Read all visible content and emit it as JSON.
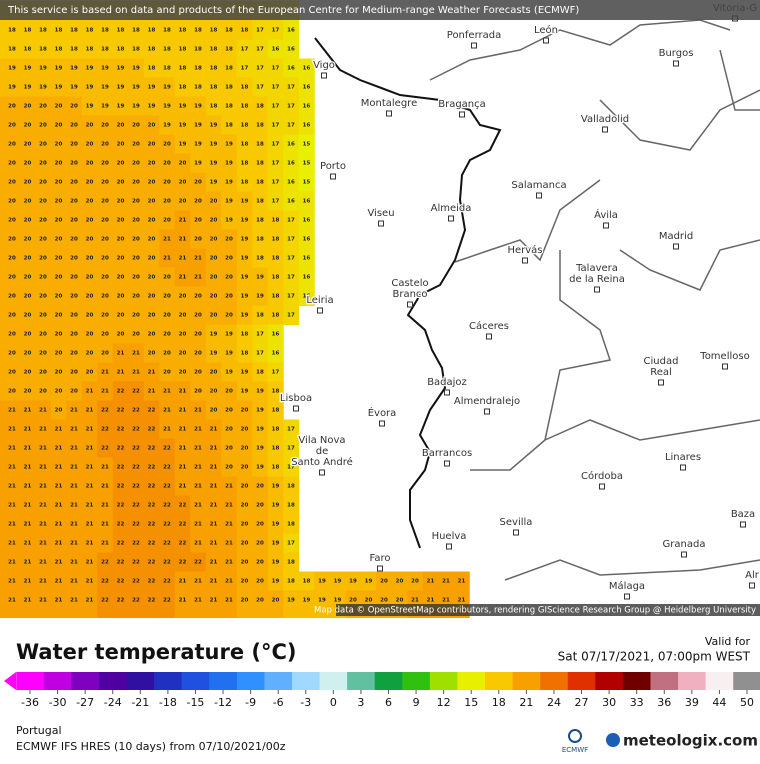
{
  "header": {
    "notice": "This service is based on data and products of the European Centre for Medium-range Weather Forecasts (ECMWF)"
  },
  "map": {
    "attribution": "Map data © OpenStreetMap contributors, rendering GIScience Research Group @ Heidelberg University",
    "cities": [
      [
        "Vitoria-G"
      ],
      [
        "León"
      ],
      [
        "Ponferrada"
      ],
      [
        "Burgos"
      ],
      [
        "Vigo"
      ],
      [
        "Montalegre"
      ],
      [
        "Bragança"
      ],
      [
        "Valladolid"
      ],
      [
        "Porto"
      ],
      [
        "Salamanca"
      ],
      [
        "Viseu"
      ],
      [
        "Almeida"
      ],
      [
        "Ávila"
      ],
      [
        "Madrid"
      ],
      [
        "Hervás"
      ],
      [
        "Talavera",
        "de la Reina"
      ],
      [
        "Castelo",
        "Branco"
      ],
      [
        "Leiria"
      ],
      [
        "Cáceres"
      ],
      [
        "Ciudad",
        "Real"
      ],
      [
        "Tomelloso"
      ],
      [
        "Badajoz"
      ],
      [
        "Lisboa"
      ],
      [
        "Almendralejo"
      ],
      [
        "Évora"
      ],
      [
        "Vila Nova",
        "de",
        "Santo André"
      ],
      [
        "Barrancos"
      ],
      [
        "Linares"
      ],
      [
        "Córdoba"
      ],
      [
        "Baza"
      ],
      [
        "Sevilla"
      ],
      [
        "Huelva"
      ],
      [
        "Granada"
      ],
      [
        "Faro"
      ],
      [
        "Málaga"
      ],
      [
        "Alr"
      ]
    ],
    "grid": [
      [
        18,
        18,
        18,
        18,
        18,
        18,
        18,
        18,
        18,
        18,
        18,
        18,
        18,
        18,
        18,
        18,
        17,
        17,
        16
      ],
      [
        18,
        18,
        18,
        18,
        18,
        18,
        18,
        18,
        18,
        18,
        18,
        18,
        18,
        18,
        18,
        17,
        17,
        16,
        16
      ],
      [
        19,
        19,
        19,
        19,
        19,
        19,
        19,
        19,
        19,
        18,
        18,
        18,
        18,
        18,
        18,
        17,
        17,
        17,
        16,
        16
      ],
      [
        19,
        19,
        19,
        19,
        19,
        19,
        19,
        19,
        19,
        19,
        19,
        18,
        18,
        18,
        18,
        18,
        17,
        17,
        17,
        16
      ],
      [
        20,
        20,
        20,
        20,
        20,
        19,
        19,
        19,
        19,
        19,
        19,
        19,
        19,
        18,
        18,
        18,
        18,
        17,
        17,
        16
      ],
      [
        20,
        20,
        20,
        20,
        20,
        20,
        20,
        20,
        20,
        20,
        19,
        19,
        19,
        19,
        18,
        18,
        18,
        17,
        17,
        16
      ],
      [
        20,
        20,
        20,
        20,
        20,
        20,
        20,
        20,
        20,
        20,
        20,
        19,
        19,
        19,
        19,
        18,
        18,
        17,
        16,
        15
      ],
      [
        20,
        20,
        20,
        20,
        20,
        20,
        20,
        20,
        20,
        20,
        20,
        20,
        19,
        19,
        19,
        18,
        18,
        17,
        16,
        15
      ],
      [
        20,
        20,
        20,
        20,
        20,
        20,
        20,
        20,
        20,
        20,
        20,
        20,
        20,
        19,
        19,
        18,
        18,
        17,
        16,
        15
      ],
      [
        20,
        20,
        20,
        20,
        20,
        20,
        20,
        20,
        20,
        20,
        20,
        20,
        20,
        20,
        19,
        19,
        18,
        17,
        16,
        16
      ],
      [
        20,
        20,
        20,
        20,
        20,
        20,
        20,
        20,
        20,
        20,
        20,
        21,
        20,
        20,
        19,
        19,
        18,
        18,
        17,
        16
      ],
      [
        20,
        20,
        20,
        20,
        20,
        20,
        20,
        20,
        20,
        20,
        21,
        21,
        20,
        20,
        20,
        19,
        18,
        18,
        17,
        16
      ],
      [
        20,
        20,
        20,
        20,
        20,
        20,
        20,
        20,
        20,
        20,
        21,
        21,
        21,
        20,
        20,
        19,
        18,
        18,
        17,
        16
      ],
      [
        20,
        20,
        20,
        20,
        20,
        20,
        20,
        20,
        20,
        20,
        20,
        21,
        21,
        20,
        20,
        19,
        19,
        18,
        17,
        16
      ],
      [
        20,
        20,
        20,
        20,
        20,
        20,
        20,
        20,
        20,
        20,
        20,
        20,
        20,
        20,
        20,
        19,
        19,
        18,
        17,
        16
      ],
      [
        20,
        20,
        20,
        20,
        20,
        20,
        20,
        20,
        20,
        20,
        20,
        20,
        20,
        20,
        20,
        19,
        18,
        18,
        17
      ],
      [
        20,
        20,
        20,
        20,
        20,
        20,
        20,
        20,
        20,
        20,
        20,
        20,
        20,
        19,
        19,
        18,
        17,
        16
      ],
      [
        20,
        20,
        20,
        20,
        20,
        20,
        20,
        21,
        21,
        20,
        20,
        20,
        20,
        19,
        19,
        18,
        17,
        16
      ],
      [
        20,
        20,
        20,
        20,
        20,
        20,
        21,
        21,
        21,
        21,
        20,
        20,
        20,
        20,
        19,
        19,
        18,
        17
      ],
      [
        20,
        20,
        20,
        20,
        20,
        21,
        21,
        22,
        22,
        21,
        21,
        21,
        20,
        20,
        20,
        19,
        19,
        18
      ],
      [
        21,
        21,
        21,
        20,
        21,
        21,
        22,
        22,
        22,
        22,
        21,
        21,
        21,
        20,
        20,
        20,
        19,
        18
      ],
      [
        21,
        21,
        21,
        21,
        21,
        21,
        22,
        22,
        22,
        22,
        21,
        21,
        21,
        21,
        20,
        20,
        19,
        18,
        17
      ],
      [
        21,
        21,
        21,
        21,
        21,
        21,
        22,
        22,
        22,
        22,
        22,
        21,
        21,
        21,
        20,
        20,
        19,
        18,
        17
      ],
      [
        21,
        21,
        21,
        21,
        21,
        21,
        21,
        22,
        22,
        22,
        22,
        21,
        21,
        21,
        20,
        20,
        19,
        18,
        17
      ],
      [
        21,
        21,
        21,
        21,
        21,
        21,
        21,
        22,
        22,
        22,
        22,
        21,
        21,
        21,
        21,
        20,
        20,
        19,
        18
      ],
      [
        21,
        21,
        21,
        21,
        21,
        21,
        21,
        22,
        22,
        22,
        22,
        22,
        21,
        21,
        21,
        20,
        20,
        19,
        18
      ],
      [
        21,
        21,
        21,
        21,
        21,
        21,
        21,
        22,
        22,
        22,
        22,
        22,
        21,
        21,
        21,
        20,
        20,
        19,
        18
      ],
      [
        21,
        21,
        21,
        21,
        21,
        21,
        21,
        22,
        22,
        22,
        22,
        22,
        21,
        21,
        21,
        20,
        20,
        19,
        17
      ],
      [
        21,
        21,
        21,
        21,
        21,
        21,
        22,
        22,
        22,
        22,
        22,
        22,
        22,
        21,
        21,
        20,
        20,
        19,
        18
      ],
      [
        21,
        21,
        21,
        21,
        21,
        21,
        22,
        22,
        22,
        22,
        22,
        21,
        21,
        21,
        21,
        20,
        20,
        19,
        18,
        18,
        19,
        19,
        19,
        19,
        20,
        20,
        20,
        21,
        21,
        21
      ],
      [
        21,
        21,
        21,
        21,
        21,
        21,
        22,
        22,
        22,
        22,
        22,
        21,
        21,
        21,
        21,
        20,
        20,
        20,
        19,
        19,
        19,
        19,
        20,
        20,
        20,
        20,
        21,
        21,
        21,
        21
      ]
    ]
  },
  "legend": {
    "title": "Water temperature (°C)",
    "valid_label": "Valid for",
    "valid_time": "Sat 07/17/2021, 07:00pm WEST",
    "ticks": [
      -36,
      -30,
      -27,
      -24,
      -21,
      -18,
      -15,
      -12,
      -9,
      -6,
      -3,
      0,
      3,
      6,
      9,
      12,
      15,
      18,
      21,
      24,
      27,
      30,
      33,
      36,
      39,
      44,
      50
    ],
    "colors": [
      "#ff00ff",
      "#c000e0",
      "#8000c0",
      "#5000a0",
      "#3010a0",
      "#2030c0",
      "#2050e0",
      "#2070f0",
      "#3090ff",
      "#60b0ff",
      "#a0d8ff",
      "#d0f0f0",
      "#60c0a0",
      "#10a040",
      "#30c010",
      "#a0e000",
      "#e8f000",
      "#f8c800",
      "#f8a000",
      "#f07000",
      "#e03000",
      "#b00000",
      "#700000",
      "#c07080",
      "#f0b0c0",
      "#f8f0f0",
      "#909090"
    ]
  },
  "footer": {
    "region": "Portugal",
    "model": "ECMWF IFS HRES (10 days) from 07/10/2021/00z",
    "ecmwf": "ECMWF",
    "brand": "meteologix.com"
  }
}
